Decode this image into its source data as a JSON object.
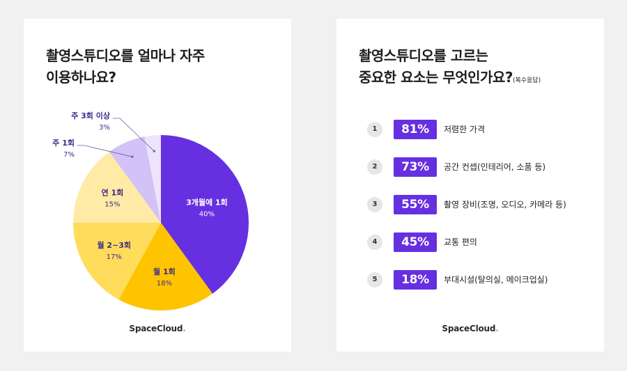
{
  "left_card": {
    "title_line1": "촬영스튜디오를 얼마나 자주",
    "title_line2": "이용하나요?",
    "brand": "SpaceCloud",
    "brand_dot": "."
  },
  "right_card": {
    "title_line1": "촬영스튜디오를 고르는",
    "title_line2": "중요한 요소는 무엇인가요?",
    "title_suffix": "(복수응답)",
    "brand": "SpaceCloud",
    "brand_dot": "."
  },
  "chart_data": [
    {
      "type": "pie",
      "title": "촬영스튜디오를 얼마나 자주 이용하나요?",
      "slices": [
        {
          "label": "3개월에 1회",
          "value": 40,
          "value_label": "40%",
          "color": "#6630e0",
          "label_color": "#ffffff"
        },
        {
          "label": "월 1회",
          "value": 18,
          "value_label": "18%",
          "color": "#ffc400",
          "label_color": "#3d2a8a"
        },
        {
          "label": "월 2~3회",
          "value": 17,
          "value_label": "17%",
          "color": "#ffdc5c",
          "label_color": "#3d2a8a"
        },
        {
          "label": "연 1회",
          "value": 15,
          "value_label": "15%",
          "color": "#ffeaa6",
          "label_color": "#3d2a8a"
        },
        {
          "label": "주 1회",
          "value": 7,
          "value_label": "7%",
          "color": "#d2c2f7",
          "label_color": "#3d2a8a"
        },
        {
          "label": "주 3회 이상",
          "value": 3,
          "value_label": "3%",
          "color": "#ebe4fb",
          "label_color": "#3d2a8a"
        }
      ]
    },
    {
      "type": "bar",
      "title": "촬영스튜디오를 고르는 중요한 요소는 무엇인가요?",
      "items": [
        {
          "rank": "1",
          "value": 81,
          "value_label": "81%",
          "label": "저렴한 가격"
        },
        {
          "rank": "2",
          "value": 73,
          "value_label": "73%",
          "label": "공간 컨셉(인테리어, 소품 등)"
        },
        {
          "rank": "3",
          "value": 55,
          "value_label": "55%",
          "label": "촬영 장비(조명, 오디오, 카메라 등)"
        },
        {
          "rank": "4",
          "value": 45,
          "value_label": "45%",
          "label": "교통 편의"
        },
        {
          "rank": "5",
          "value": 18,
          "value_label": "18%",
          "label": "부대시설(탈의실, 메이크업실)"
        }
      ],
      "badge_color": "#6630e0"
    }
  ]
}
